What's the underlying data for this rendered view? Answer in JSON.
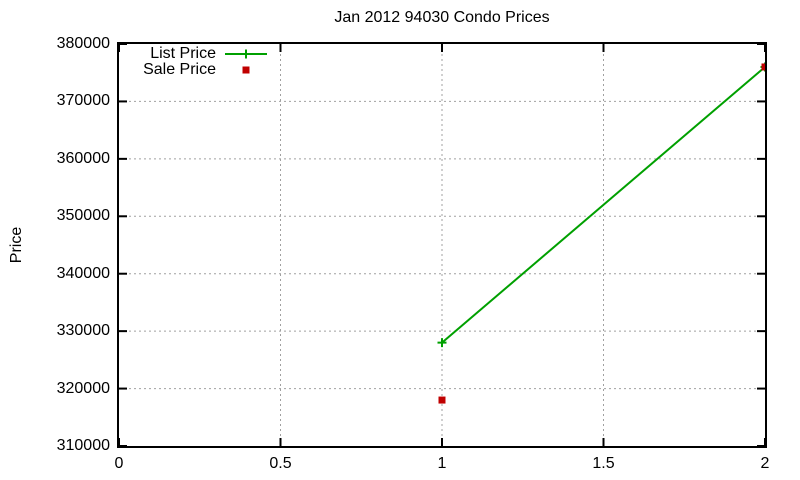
{
  "window": {
    "background": "#ffffff"
  },
  "chart_data": {
    "type": "line",
    "title": "Jan 2012 94030 Condo Prices",
    "xlabel": "",
    "ylabel": "Price",
    "xlim": [
      0,
      2
    ],
    "ylim": [
      310000,
      380000
    ],
    "x_ticks": [
      0,
      0.5,
      1,
      1.5,
      2
    ],
    "x_tick_labels": [
      "0",
      "0.5",
      "1",
      "1.5",
      "2"
    ],
    "y_ticks": [
      310000,
      320000,
      330000,
      340000,
      350000,
      360000,
      370000,
      380000
    ],
    "y_tick_labels": [
      "310000",
      "320000",
      "330000",
      "340000",
      "350000",
      "360000",
      "370000",
      "380000"
    ],
    "grid": true,
    "legend_position": "top-left",
    "series": [
      {
        "name": "List Price",
        "type": "line",
        "color": "#00a000",
        "marker": "plus",
        "points": [
          [
            1,
            328000
          ],
          [
            2,
            376000
          ]
        ]
      },
      {
        "name": "Sale Price",
        "type": "points",
        "color": "#c00000",
        "marker": "square",
        "points": [
          [
            1,
            318000
          ],
          [
            2,
            376000
          ]
        ]
      }
    ],
    "colors": {
      "grid": "#a0a0a0",
      "axis": "#000000",
      "text": "#000000",
      "background": "#ffffff"
    }
  }
}
